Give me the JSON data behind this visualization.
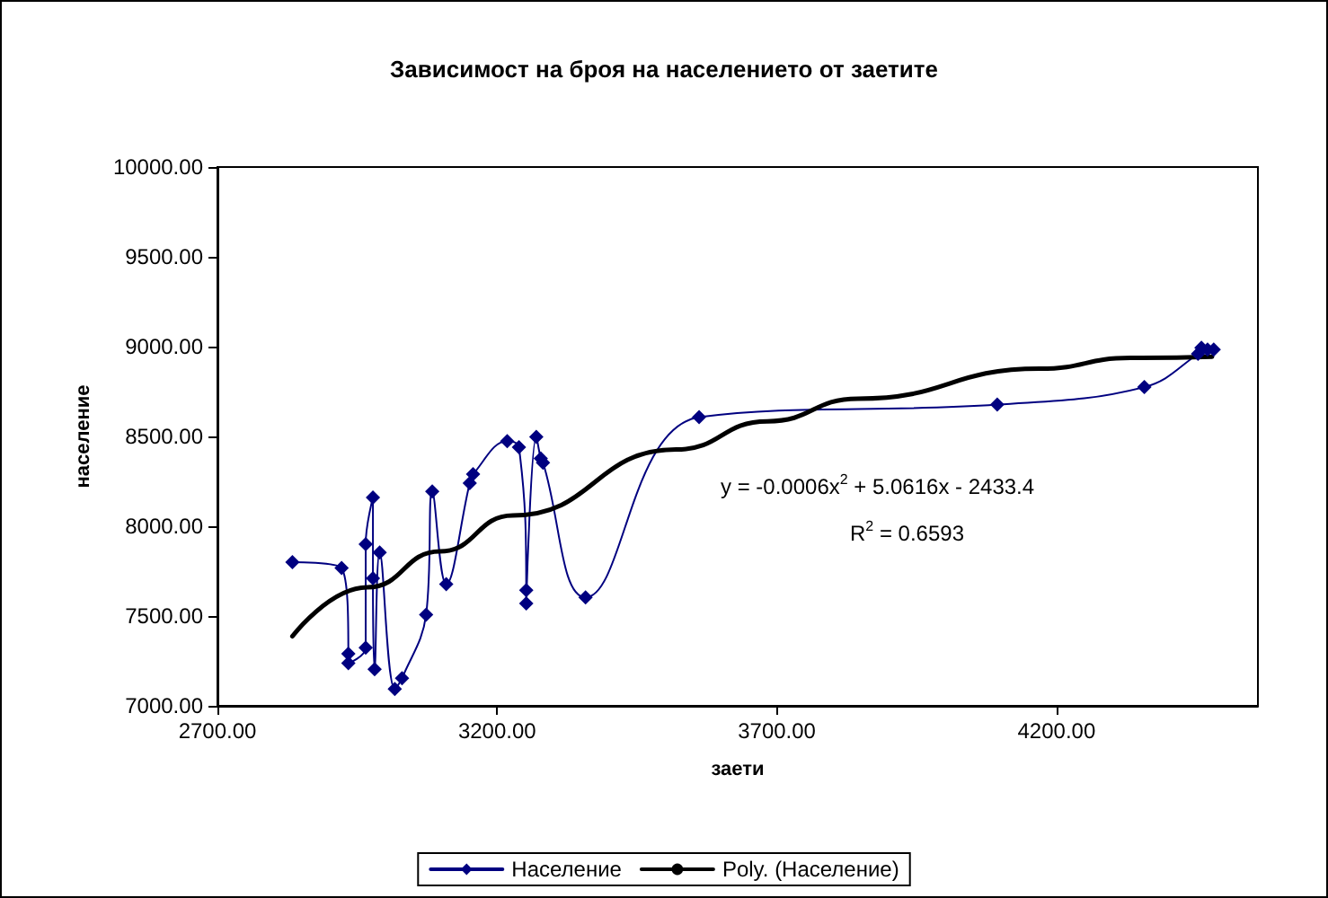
{
  "chart_data": {
    "type": "line",
    "title": "Зависимост на броя на населението от заетите",
    "xlabel": "заети",
    "ylabel": "население",
    "xlim": [
      2700,
      4560
    ],
    "xticks": [
      {
        "value": 2700,
        "label": "2700.00"
      },
      {
        "value": 3200,
        "label": "3200.00"
      },
      {
        "value": 3700,
        "label": "3700.00"
      },
      {
        "value": 4200,
        "label": "4200.00"
      }
    ],
    "ylim": [
      7000,
      10000
    ],
    "yticks": [
      {
        "value": 7000,
        "label": "7000.00"
      },
      {
        "value": 7500,
        "label": "7500.00"
      },
      {
        "value": 8000,
        "label": "8000.00"
      },
      {
        "value": 8500,
        "label": "8500.00"
      },
      {
        "value": 9000,
        "label": "9000.00"
      },
      {
        "value": 9500,
        "label": "9500.00"
      },
      {
        "value": 10000,
        "label": "10000.00"
      }
    ],
    "grid": false,
    "legend": "bottom",
    "annotations": [
      "y = -0.0006x$^{2}$ + 5.0616x - 2433.4",
      "R$^{2}$ = 0.6593"
    ],
    "series": [
      {
        "name": "Население",
        "color": "#000080",
        "marker": "diamond",
        "line_style": "solid",
        "x": [
          2834,
          2922,
          2934,
          2934,
          2965,
          2965,
          2978,
          2978,
          2981,
          2990,
          3017,
          3030,
          3073,
          3084,
          3109,
          3151,
          3157,
          3218,
          3239,
          3252,
          3252,
          3270,
          3278,
          3282,
          3358,
          3561,
          4094,
          4357,
          4453,
          4459,
          4470,
          4481
        ],
        "values": [
          7800,
          7767,
          7290,
          7237,
          7324,
          7900,
          8160,
          7710,
          7204,
          7854,
          7094,
          7154,
          7507,
          8194,
          7677,
          8240,
          8290,
          8474,
          8440,
          7644,
          7570,
          8497,
          8377,
          8354,
          7604,
          8607,
          8677,
          8775,
          8960,
          8994,
          8984,
          8984
        ]
      },
      {
        "name": "Poly. (Население)",
        "type": "line",
        "color": "#000000",
        "marker": "none",
        "line_style": "solid",
        "x": [
          2834,
          2968,
          3098,
          3228,
          3520,
          3683,
          3845,
          4170,
          4332,
          4478
        ],
        "values": [
          7387,
          7660,
          7860,
          8060,
          8427,
          8584,
          8710,
          8877,
          8937,
          8944
        ]
      }
    ]
  }
}
